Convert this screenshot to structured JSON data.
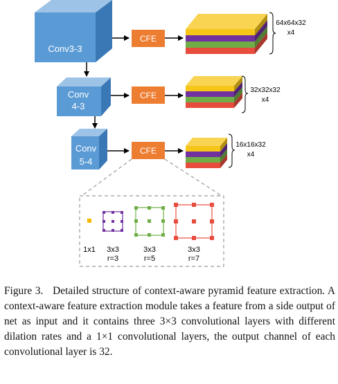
{
  "figure": {
    "conv_blocks": [
      {
        "line1": "Conv3-3",
        "line2": ""
      },
      {
        "line1": "Conv",
        "line2": "4-3"
      },
      {
        "line1": "Conv",
        "line2": "5-4"
      }
    ],
    "cfe_label": "CFE",
    "outputs": [
      {
        "dims": "64x64x32",
        "mult": "x4"
      },
      {
        "dims": "32x32x32",
        "mult": "x4"
      },
      {
        "dims": "16x16x32",
        "mult": "x4"
      }
    ],
    "kernels": [
      {
        "size": "1x1",
        "rate": ""
      },
      {
        "size": "3x3",
        "rate": "r=3"
      },
      {
        "size": "3x3",
        "rate": "r=5"
      },
      {
        "size": "3x3",
        "rate": "r=7"
      }
    ],
    "layer_colors": [
      "#f5c518",
      "#7030a0",
      "#70ad47",
      "#e84c3d"
    ],
    "conv_color": "#5b9bd5",
    "cfe_color": "#ed7d31"
  },
  "caption": {
    "label": "Figure 3.",
    "text": "Detailed structure of context-aware pyramid feature extraction. A context-aware feature extraction module takes a feature from a side output of net as input and it contains three 3×3 convolutional layers with different dilation rates and a 1×1 convolutional layers, the output channel of each convolutional layer is 32."
  }
}
